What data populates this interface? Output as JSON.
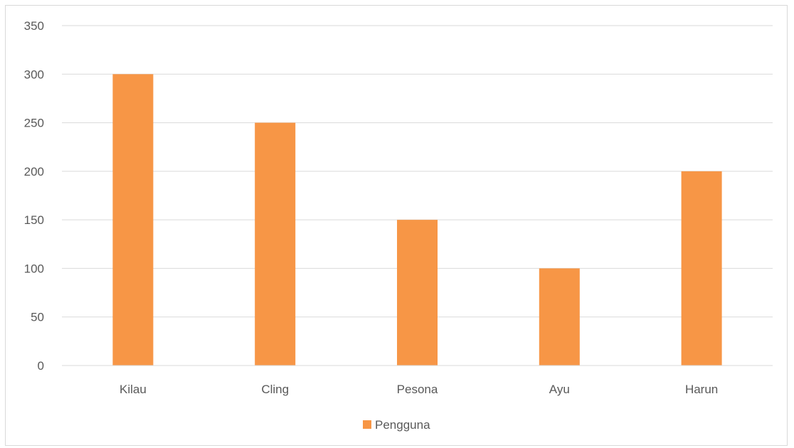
{
  "chart_data": {
    "type": "bar",
    "categories": [
      "Kilau",
      "Cling",
      "Pesona",
      "Ayu",
      "Harun"
    ],
    "series": [
      {
        "name": "Pengguna",
        "values": [
          300,
          250,
          150,
          100,
          200
        ],
        "color": "#f79646"
      }
    ],
    "ylim": [
      0,
      350
    ],
    "yticks": [
      0,
      50,
      100,
      150,
      200,
      250,
      300,
      350
    ],
    "grid": true,
    "legend_position": "bottom",
    "title": "",
    "xlabel": "",
    "ylabel": ""
  },
  "colors": {
    "gridline": "#d9d9d9",
    "axis_text": "#595959",
    "frame_border": "#d9d9d9"
  }
}
